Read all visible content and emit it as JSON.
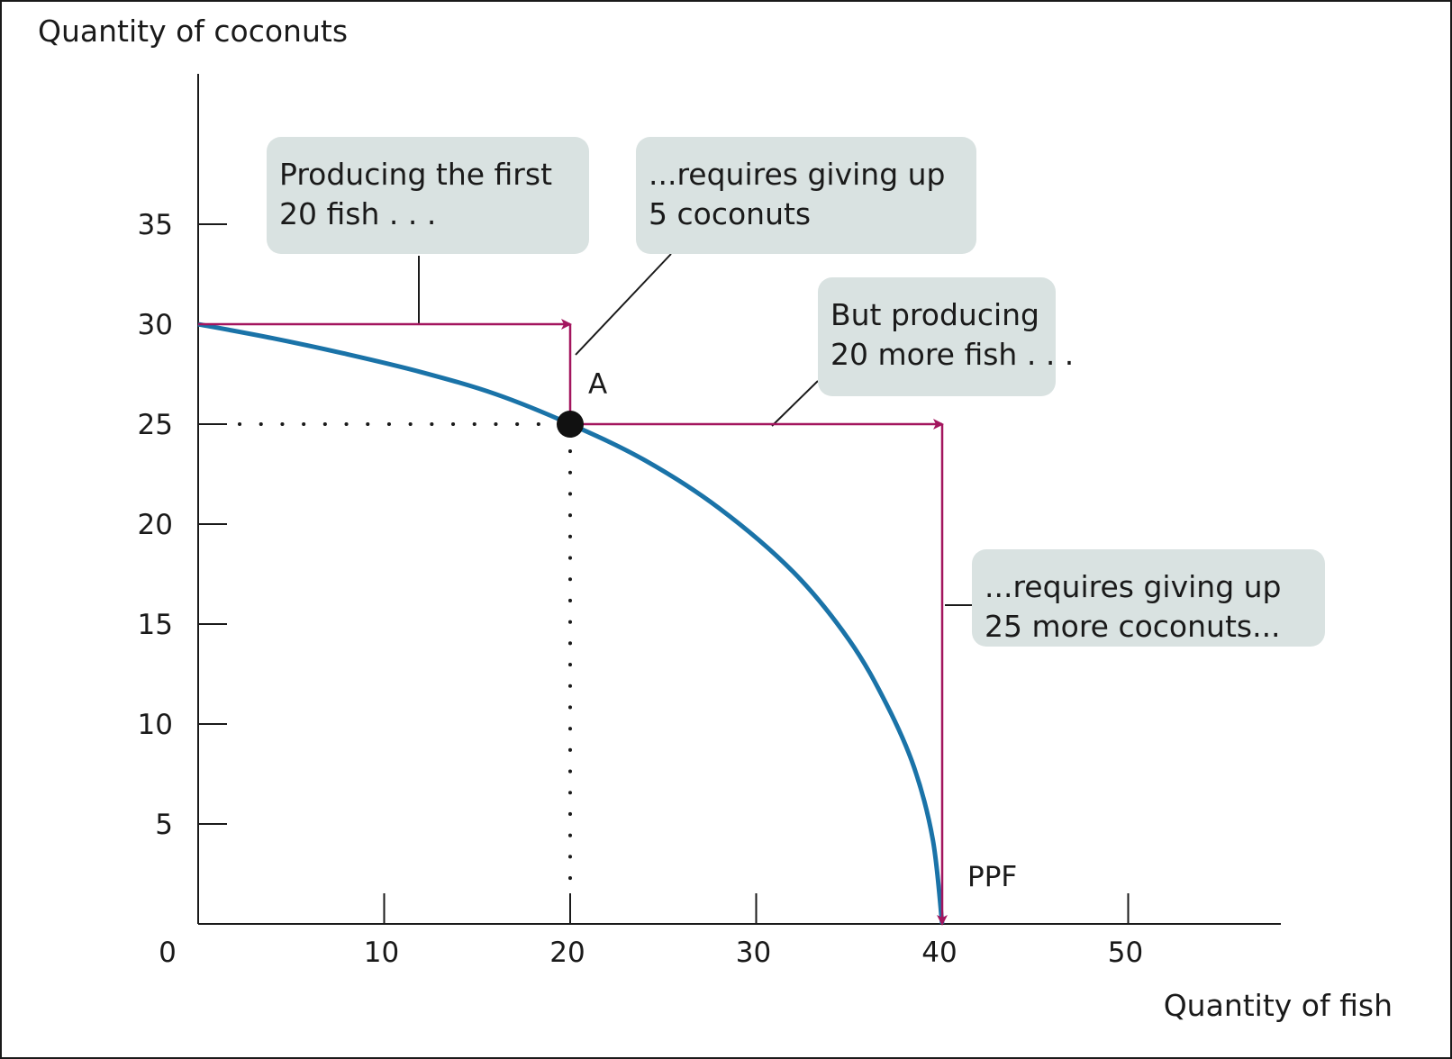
{
  "chart_data": {
    "type": "line",
    "xlabel": "Quantity of fish",
    "ylabel": "Quantity of coconuts",
    "xlim": [
      0,
      58
    ],
    "ylim": [
      0,
      42
    ],
    "x_ticks": [
      10,
      20,
      30,
      40,
      50
    ],
    "y_ticks": [
      5,
      10,
      15,
      20,
      25,
      30,
      35
    ],
    "origin_label": "0",
    "grid": false,
    "series": [
      {
        "name": "PPF",
        "color": "#1a73a8",
        "points": [
          {
            "x": 0,
            "y": 30
          },
          {
            "x": 4,
            "y": 29.3
          },
          {
            "x": 8,
            "y": 28.5
          },
          {
            "x": 12,
            "y": 27.6
          },
          {
            "x": 16,
            "y": 26.5
          },
          {
            "x": 20,
            "y": 25
          },
          {
            "x": 24,
            "y": 23.2
          },
          {
            "x": 28,
            "y": 20.8
          },
          {
            "x": 32,
            "y": 17.6
          },
          {
            "x": 35,
            "y": 14.2
          },
          {
            "x": 37,
            "y": 11
          },
          {
            "x": 38.5,
            "y": 7.8
          },
          {
            "x": 39.5,
            "y": 4.2
          },
          {
            "x": 40,
            "y": 0
          }
        ]
      }
    ],
    "point_A": {
      "label": "A",
      "x": 20,
      "y": 25
    },
    "arrows": [
      {
        "from": [
          0,
          30
        ],
        "to": [
          20,
          30
        ]
      },
      {
        "from": [
          20,
          30
        ],
        "to": [
          20,
          25
        ]
      },
      {
        "from": [
          20,
          25
        ],
        "to": [
          40,
          25
        ]
      },
      {
        "from": [
          40,
          25
        ],
        "to": [
          40,
          0
        ]
      }
    ],
    "arrow_color": "#a3155e",
    "annotations": [
      {
        "id": "first-20-fish",
        "lines": [
          "Producing the first",
          "20 fish . . ."
        ]
      },
      {
        "id": "give-up-5",
        "lines": [
          "...requires giving up",
          "5 coconuts"
        ]
      },
      {
        "id": "more-20-fish",
        "lines": [
          "But producing",
          "20 more fish . . ."
        ]
      },
      {
        "id": "give-up-25",
        "lines": [
          "...requires giving up",
          "25 more coconuts..."
        ]
      }
    ],
    "curve_label": "PPF",
    "box_color": "#d9e2e1"
  }
}
